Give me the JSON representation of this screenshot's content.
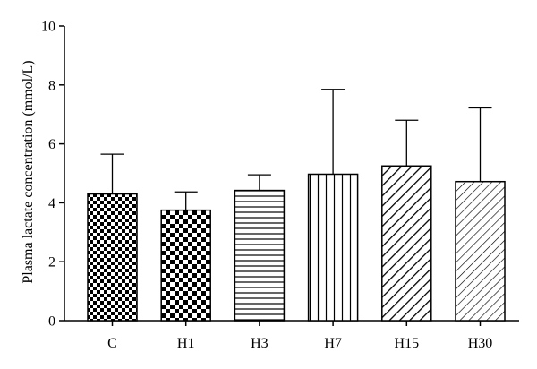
{
  "chart_data": {
    "type": "bar",
    "title": "",
    "xlabel": "",
    "ylabel": "Plasma lactate concentration (mmol/L)",
    "ylim": [
      0,
      10
    ],
    "yticks": [
      0,
      2,
      4,
      6,
      8,
      10
    ],
    "categories": [
      "C",
      "H1",
      "H3",
      "H7",
      "H15",
      "H30"
    ],
    "values": [
      4.3,
      3.75,
      4.42,
      4.97,
      5.25,
      4.72
    ],
    "error_upper": [
      1.35,
      0.62,
      0.53,
      2.88,
      1.55,
      2.5
    ],
    "patterns": [
      "checker-fine",
      "checker-bold",
      "horizontal-lines",
      "vertical-lines",
      "diagonal-right-bold",
      "diagonal-right-fine"
    ],
    "grid": false,
    "legend": "none",
    "colors": {
      "bar_fill": "#ffffff",
      "stroke": "#000000"
    }
  }
}
